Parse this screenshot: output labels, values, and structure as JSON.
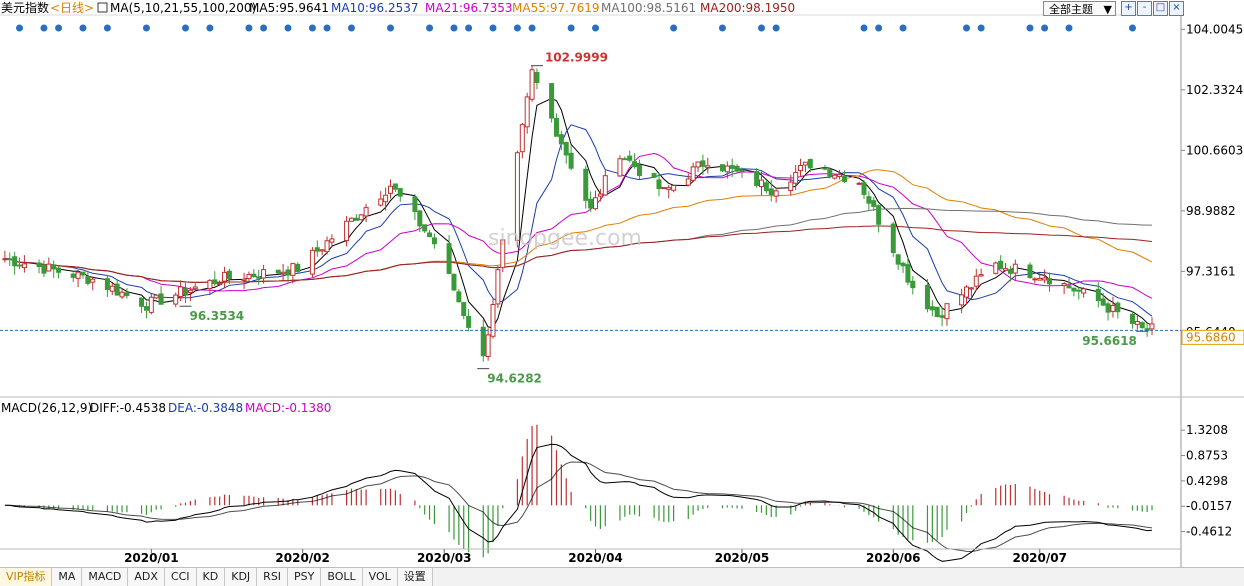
{
  "legend": {
    "symbol": "美元指数",
    "period": "<日线>",
    "ma_params": "MA(5,10,21,55,100,200)",
    "items": [
      {
        "label": "MA5:95.9641",
        "color": "#000000"
      },
      {
        "label": "MA10:96.2537",
        "color": "#1a3ea8"
      },
      {
        "label": "MA21:96.7353",
        "color": "#cc00cc"
      },
      {
        "label": "MA55:97.7619",
        "color": "#e08000"
      },
      {
        "label": "MA100:98.5161",
        "color": "#707070"
      },
      {
        "label": "MA200:98.1950",
        "color": "#a02020"
      }
    ]
  },
  "toolbar": {
    "theme_select": "全部主题",
    "buttons": [
      "+",
      "-",
      "□"
    ]
  },
  "macd_legend": {
    "params": "MACD(26,12,9)",
    "diff": "DIFF:-0.4538",
    "dea": "DEA:-0.3848",
    "macd": "MACD:-0.1380"
  },
  "bottom_tabs": [
    "VIP指标",
    "MA",
    "MACD",
    "ADX",
    "CCI",
    "KD",
    "KDJ",
    "RSI",
    "PSY",
    "BOLL",
    "VOL",
    "设置"
  ],
  "watermark": "sinopgee.com",
  "chart_data": [
    {
      "type": "candlestick",
      "series_name": "美元指数",
      "x_ticks": [
        "2020/01",
        "2020/02",
        "2020/03",
        "2020/04",
        "2020/05",
        "2020/06",
        "2020/07"
      ],
      "y_ticks": [
        104.0045,
        102.3324,
        100.6603,
        98.9882,
        97.3161,
        95.644
      ],
      "y_tick_labels": [
        "104.0045",
        "102.3324",
        "100.6603",
        "98.9882",
        "97.3161",
        "95.6440"
      ],
      "ylim": [
        93.9,
        104.4
      ],
      "current_price": 95.686,
      "current_price_label": "95.6860",
      "annotations": [
        {
          "label": "102.9999",
          "x": "2020-03-20",
          "y": 102.9999,
          "color": "#cc3333"
        },
        {
          "label": "94.6282",
          "x": "2020-03-09",
          "y": 94.6282,
          "color": "#4a9a4a"
        },
        {
          "label": "96.3534",
          "x": "2020-01-08",
          "y": 96.3534,
          "color": "#4a9a4a"
        },
        {
          "label": "95.6618",
          "x": "2020-07-22",
          "y": 95.6618,
          "color": "#4a9a4a"
        }
      ],
      "key_closes": [
        {
          "date": "2019-12-01",
          "close": 97.7
        },
        {
          "date": "2019-12-20",
          "close": 97.1
        },
        {
          "date": "2019-12-31",
          "close": 96.4
        },
        {
          "date": "2020-01-15",
          "close": 97.1
        },
        {
          "date": "2020-01-31",
          "close": 97.4
        },
        {
          "date": "2020-02-19",
          "close": 99.7
        },
        {
          "date": "2020-02-28",
          "close": 98.1
        },
        {
          "date": "2020-03-09",
          "close": 94.9
        },
        {
          "date": "2020-03-19",
          "close": 102.8
        },
        {
          "date": "2020-03-31",
          "close": 99.0
        },
        {
          "date": "2020-04-06",
          "close": 100.6
        },
        {
          "date": "2020-04-15",
          "close": 99.5
        },
        {
          "date": "2020-04-24",
          "close": 100.4
        },
        {
          "date": "2020-05-07",
          "close": 99.6
        },
        {
          "date": "2020-05-15",
          "close": 100.3
        },
        {
          "date": "2020-05-25",
          "close": 99.8
        },
        {
          "date": "2020-06-05",
          "close": 96.9
        },
        {
          "date": "2020-06-10",
          "close": 96.1
        },
        {
          "date": "2020-06-22",
          "close": 97.5
        },
        {
          "date": "2020-07-02",
          "close": 97.2
        },
        {
          "date": "2020-07-13",
          "close": 96.5
        },
        {
          "date": "2020-07-22",
          "close": 95.7
        }
      ],
      "ma_series": [
        {
          "name": "MA5",
          "color": "#000000"
        },
        {
          "name": "MA10",
          "color": "#1a3ea8"
        },
        {
          "name": "MA21",
          "color": "#cc00cc"
        },
        {
          "name": "MA55",
          "color": "#e08000"
        },
        {
          "name": "MA100",
          "color": "#707070"
        },
        {
          "name": "MA200",
          "color": "#a02020"
        }
      ],
      "signal_dots": "top",
      "grid": false
    },
    {
      "type": "macd",
      "y_ticks": [
        1.3208,
        0.8753,
        0.4298,
        -0.0157,
        -0.4612
      ],
      "y_tick_labels": [
        "1.3208",
        "0.8753",
        "0.4298",
        "-0.0157",
        "-0.4612"
      ],
      "ylim": [
        -0.75,
        1.5
      ],
      "diff_color": "#000000",
      "dea_color": "#000000",
      "up_color": "#c03030",
      "down_color": "#3a9a3a"
    }
  ]
}
